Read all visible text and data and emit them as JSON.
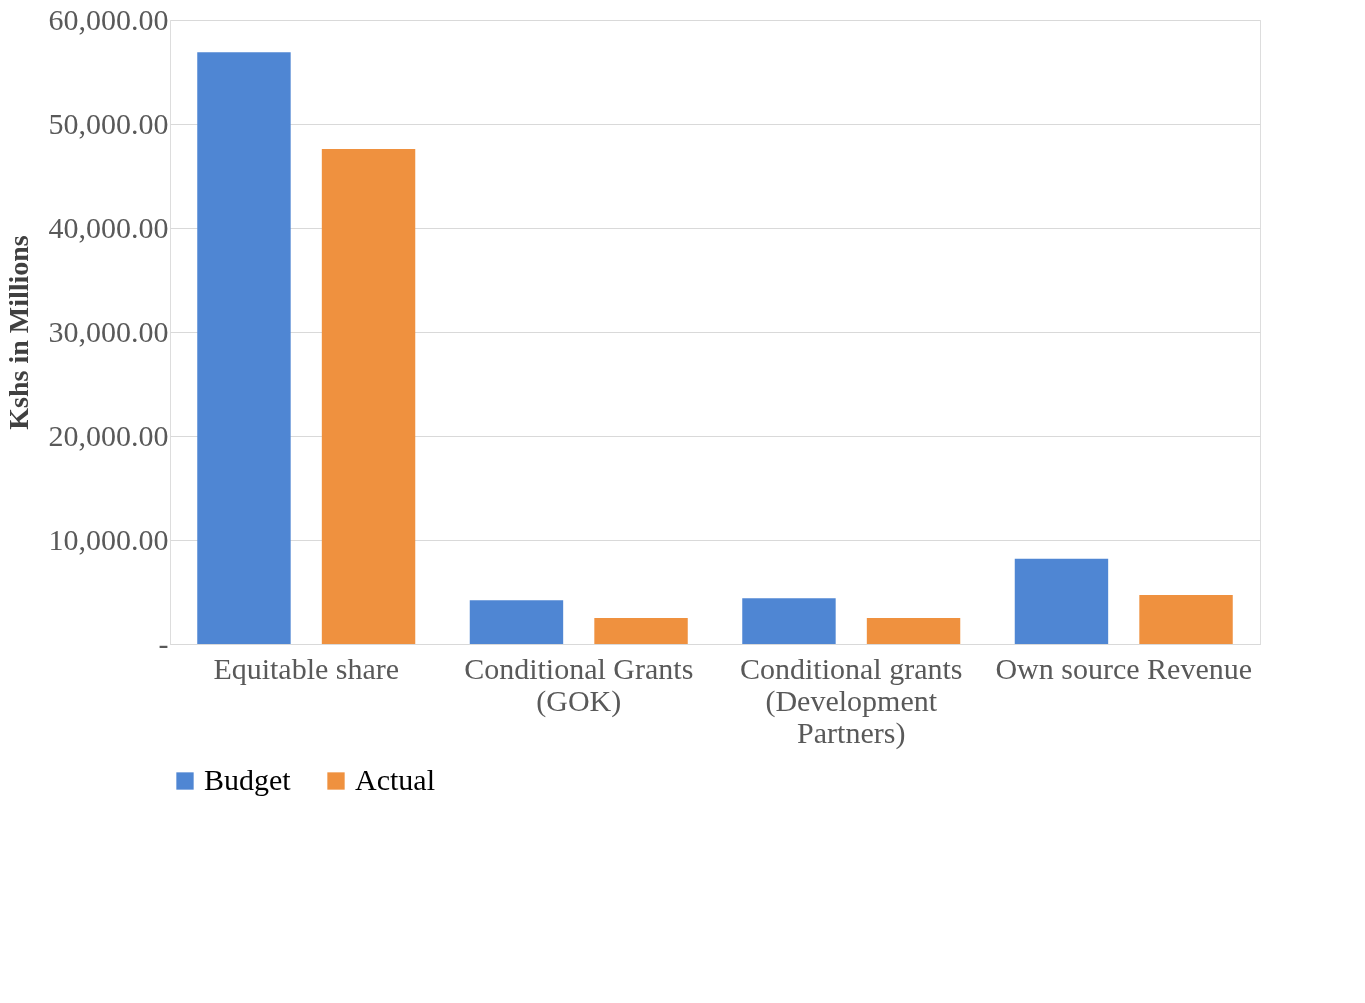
{
  "chart_data": {
    "type": "bar",
    "ylabel": "Kshs in Millions",
    "categories": [
      "Equitable share",
      "Conditional Grants (GOK)",
      "Conditional grants (Development Partners)",
      "Own source Revenue"
    ],
    "series": [
      {
        "name": "Budget",
        "color": "#4f86d3",
        "values": [
          56900,
          4200,
          4400,
          8200
        ]
      },
      {
        "name": "Actual",
        "color": "#ef913f",
        "values": [
          47600,
          2500,
          2500,
          4700
        ]
      }
    ],
    "ylim": [
      0,
      60000
    ],
    "yticks": [
      {
        "value": 0,
        "label": "-"
      },
      {
        "value": 10000,
        "label": "10,000.00"
      },
      {
        "value": 20000,
        "label": "20,000.00"
      },
      {
        "value": 30000,
        "label": "30,000.00"
      },
      {
        "value": 40000,
        "label": "40,000.00"
      },
      {
        "value": 50000,
        "label": "50,000.00"
      },
      {
        "value": 60000,
        "label": "60,000.00"
      }
    ],
    "grid": "y",
    "legend": "bottom"
  }
}
